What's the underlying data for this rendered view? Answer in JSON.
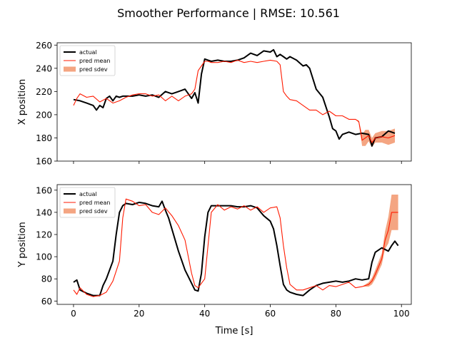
{
  "figure": {
    "title": "Smoother Performance | RMSE: 10.561"
  },
  "chart_data": [
    {
      "type": "line",
      "title": "",
      "xlabel": "",
      "ylabel": "X position",
      "xlim": [
        -5,
        103
      ],
      "ylim": [
        160,
        262
      ],
      "xticks": [
        0,
        20,
        40,
        60,
        80,
        100
      ],
      "xtick_labels_shown": false,
      "yticks": [
        160,
        180,
        200,
        220,
        240,
        260
      ],
      "grid": false,
      "legend": {
        "placement": "top-left",
        "entries": [
          "actual",
          "pred mean",
          "pred sdev"
        ]
      },
      "colors": {
        "actual": "#000000",
        "pred_mean": "#ff1a00",
        "pred_sdev": "#f4a582"
      },
      "series": [
        {
          "name": "actual",
          "x": [
            0,
            2,
            4,
            6,
            7,
            8,
            9,
            10,
            11,
            12,
            13,
            14,
            15,
            16,
            18,
            20,
            22,
            24,
            26,
            28,
            30,
            32,
            34,
            36,
            37,
            38,
            39,
            40,
            41,
            42,
            44,
            46,
            48,
            50,
            52,
            54,
            56,
            58,
            60,
            61,
            62,
            63,
            64,
            65,
            66,
            68,
            70,
            71,
            72,
            74,
            76,
            78,
            79,
            80,
            81,
            82,
            84,
            86,
            88,
            90,
            91,
            92,
            94,
            96,
            98
          ],
          "y": [
            213,
            212,
            210,
            208,
            204,
            208,
            206,
            214,
            216,
            212,
            216,
            215,
            216,
            216,
            216,
            217,
            216,
            217,
            215,
            220,
            218,
            220,
            222,
            214,
            219,
            210,
            235,
            248,
            247,
            246,
            247,
            246,
            246,
            247,
            249,
            253,
            251,
            255,
            254,
            256,
            250,
            252,
            250,
            248,
            250,
            247,
            242,
            243,
            240,
            222,
            215,
            198,
            188,
            186,
            179,
            183,
            185,
            183,
            184,
            183,
            173,
            180,
            181,
            186,
            184
          ]
        },
        {
          "name": "pred mean",
          "x": [
            0,
            1,
            2,
            4,
            6,
            8,
            10,
            12,
            14,
            16,
            18,
            20,
            22,
            24,
            26,
            28,
            30,
            32,
            34,
            36,
            37,
            38,
            39,
            40,
            41,
            42,
            44,
            46,
            48,
            50,
            52,
            54,
            56,
            58,
            60,
            62,
            63,
            64,
            65,
            66,
            68,
            70,
            72,
            74,
            76,
            78,
            80,
            82,
            84,
            86,
            87,
            88,
            89,
            90,
            91,
            92,
            94,
            96,
            98
          ],
          "y": [
            208,
            214,
            218,
            215,
            216,
            211,
            214,
            210,
            212,
            215,
            217,
            218,
            218,
            216,
            217,
            212,
            216,
            212,
            216,
            218,
            222,
            238,
            242,
            246,
            246,
            245,
            245,
            246,
            245,
            247,
            245,
            246,
            245,
            246,
            247,
            246,
            243,
            220,
            216,
            213,
            212,
            208,
            204,
            204,
            200,
            203,
            199,
            199,
            196,
            196,
            194,
            178,
            180,
            182,
            176,
            180,
            181,
            180,
            182
          ],
          "band_sdev": [
            0,
            0,
            0,
            0,
            0,
            0,
            0,
            0,
            0,
            0,
            0,
            0,
            0,
            0,
            0,
            0,
            0,
            0,
            0,
            0,
            0,
            0,
            0,
            0,
            0,
            0,
            0,
            0,
            0,
            0,
            0,
            0,
            0,
            0,
            0,
            0,
            0,
            0,
            0,
            0,
            0,
            0,
            0,
            0,
            0,
            0,
            0,
            0,
            0,
            0,
            1,
            5,
            7,
            5,
            4,
            4,
            5,
            6,
            6
          ]
        }
      ]
    },
    {
      "type": "line",
      "title": "",
      "xlabel": "Time [s]",
      "ylabel": "Y position",
      "xlim": [
        -5,
        103
      ],
      "ylim": [
        57,
        165
      ],
      "xticks": [
        0,
        20,
        40,
        60,
        80,
        100
      ],
      "xtick_labels_shown": true,
      "yticks": [
        60,
        80,
        100,
        120,
        140,
        160
      ],
      "grid": false,
      "legend": {
        "placement": "top-left",
        "entries": [
          "actual",
          "pred mean",
          "pred sdev"
        ]
      },
      "colors": {
        "actual": "#000000",
        "pred_mean": "#ff1a00",
        "pred_sdev": "#f4a582"
      },
      "series": [
        {
          "name": "actual",
          "x": [
            0,
            1,
            2,
            4,
            6,
            8,
            9,
            10,
            12,
            13,
            14,
            15,
            16,
            18,
            20,
            22,
            24,
            26,
            27,
            28,
            29,
            30,
            32,
            34,
            35,
            36,
            37,
            38,
            39,
            40,
            41,
            42,
            44,
            46,
            48,
            50,
            52,
            54,
            56,
            58,
            60,
            61,
            62,
            63,
            64,
            65,
            66,
            68,
            70,
            72,
            74,
            76,
            78,
            80,
            82,
            84,
            86,
            88,
            90,
            91,
            92,
            94,
            96,
            97,
            98,
            99
          ],
          "y": [
            77,
            79,
            70,
            67,
            65,
            65,
            74,
            80,
            96,
            120,
            140,
            146,
            148,
            147,
            149,
            148,
            146,
            145,
            150,
            142,
            135,
            125,
            105,
            88,
            82,
            76,
            70,
            69,
            85,
            118,
            140,
            146,
            146,
            146,
            146,
            145,
            145,
            146,
            144,
            137,
            132,
            125,
            110,
            92,
            75,
            70,
            68,
            66,
            65,
            70,
            74,
            76,
            77,
            78,
            77,
            78,
            80,
            79,
            80,
            95,
            104,
            108,
            105,
            110,
            114,
            110
          ],
          "band_sdev": []
        },
        {
          "name": "pred mean",
          "x": [
            0,
            1,
            2,
            4,
            6,
            8,
            10,
            12,
            14,
            15,
            16,
            18,
            20,
            22,
            24,
            26,
            28,
            30,
            32,
            34,
            36,
            37,
            38,
            40,
            41,
            42,
            44,
            46,
            48,
            50,
            52,
            54,
            56,
            58,
            60,
            62,
            63,
            64,
            65,
            66,
            68,
            70,
            72,
            74,
            76,
            78,
            80,
            82,
            84,
            86,
            88,
            90,
            91,
            92,
            94,
            95,
            96,
            97,
            98,
            99
          ],
          "y": [
            70,
            66,
            72,
            66,
            64,
            65,
            68,
            78,
            96,
            135,
            152,
            150,
            146,
            147,
            140,
            138,
            144,
            137,
            128,
            115,
            85,
            74,
            72,
            80,
            110,
            140,
            147,
            142,
            145,
            143,
            146,
            142,
            145,
            140,
            144,
            145,
            135,
            110,
            90,
            75,
            70,
            70,
            72,
            74,
            70,
            74,
            73,
            75,
            77,
            72,
            73,
            75,
            78,
            84,
            98,
            115,
            124,
            140,
            140,
            140
          ],
          "band_sdev": [
            0,
            0,
            0,
            0,
            0,
            0,
            0,
            0,
            0,
            0,
            0,
            0,
            0,
            0,
            0,
            0,
            0,
            0,
            0,
            0,
            0,
            0,
            0,
            0,
            0,
            0,
            0,
            0,
            0,
            0,
            0,
            0,
            0,
            0,
            0,
            0,
            0,
            0,
            0,
            0,
            0,
            0,
            0,
            0,
            0,
            0,
            0,
            0,
            0,
            0,
            0,
            2,
            3,
            4,
            5,
            8,
            12,
            16,
            16,
            16
          ]
        }
      ]
    }
  ]
}
